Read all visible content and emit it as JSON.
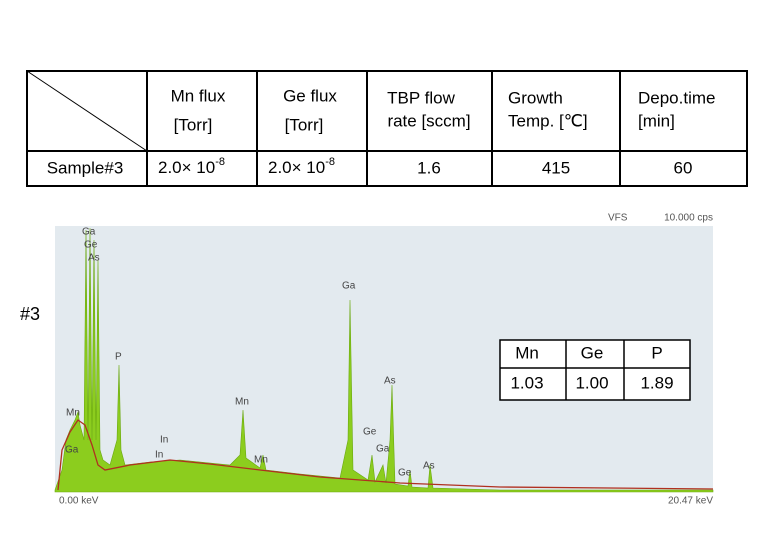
{
  "table": {
    "header": [
      null,
      [
        "Mn flux",
        "[Torr]"
      ],
      [
        "Ge flux",
        "[Torr]"
      ],
      [
        "TBP flow",
        "rate [sccm]"
      ],
      [
        "Growth",
        "Temp. [℃]"
      ],
      [
        "Depo.time",
        "[min]"
      ]
    ],
    "row": [
      "Sample#3",
      {
        "base": "2.0× 10",
        "exp": "-8"
      },
      {
        "base": "2.0× 10",
        "exp": "-8"
      },
      "1.6",
      "415",
      "60"
    ]
  },
  "sample_label": "#3",
  "spectrum": {
    "scale_label": "VFS",
    "cps": "10.000 cps",
    "x_start": "0.00 keV",
    "x_end": "20.47 keV",
    "peak_labels": [
      "Ga",
      "Ge",
      "As",
      "P",
      "Mn",
      "Ga",
      "In",
      "In",
      "Mn",
      "Mn",
      "Ga",
      "As",
      "Ge",
      "Ga",
      "Ge",
      "As"
    ]
  },
  "ratio_table": {
    "header": [
      "Mn",
      "Ge",
      "P"
    ],
    "values": [
      "1.03",
      "1.00",
      "1.89"
    ]
  }
}
